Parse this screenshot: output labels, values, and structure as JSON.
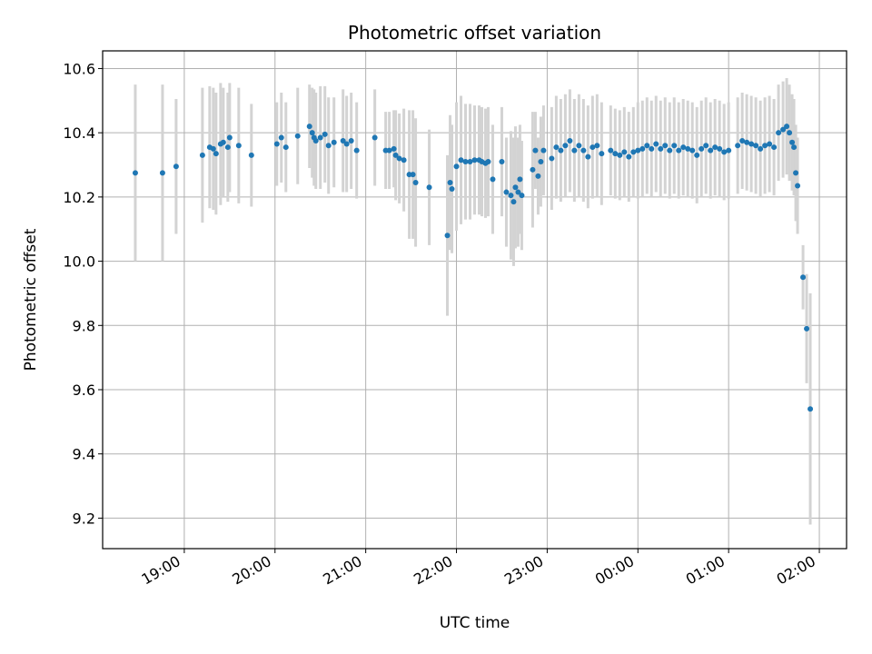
{
  "chart_data": {
    "type": "scatter",
    "title": "Photometric offset variation",
    "xlabel": "UTC time",
    "ylabel": "Photometric offset",
    "x_unit": "hours UTC",
    "xlim": [
      18.1,
      26.3
    ],
    "ylim": [
      9.105,
      10.655
    ],
    "grid": true,
    "x_ticks": [
      {
        "value": 19,
        "label": "19:00"
      },
      {
        "value": 20,
        "label": "20:00"
      },
      {
        "value": 21,
        "label": "21:00"
      },
      {
        "value": 22,
        "label": "22:00"
      },
      {
        "value": 23,
        "label": "23:00"
      },
      {
        "value": 24,
        "label": "00:00"
      },
      {
        "value": 25,
        "label": "01:00"
      },
      {
        "value": 26,
        "label": "02:00"
      }
    ],
    "y_ticks": [
      {
        "value": 9.2,
        "label": "9.2"
      },
      {
        "value": 9.4,
        "label": "9.4"
      },
      {
        "value": 9.6,
        "label": "9.6"
      },
      {
        "value": 9.8,
        "label": "9.8"
      },
      {
        "value": 10.0,
        "label": "10.0"
      },
      {
        "value": 10.2,
        "label": "10.2"
      },
      {
        "value": 10.4,
        "label": "10.4"
      },
      {
        "value": 10.6,
        "label": "10.6"
      }
    ],
    "colors": {
      "point": "#1f77b4",
      "errorbar": "#d3d3d3",
      "grid": "#b0b0b0"
    },
    "series": [
      {
        "points": [
          [
            18.46,
            10.275,
            0.275
          ],
          [
            18.76,
            10.275,
            0.275
          ],
          [
            18.91,
            10.295,
            0.21
          ],
          [
            19.2,
            10.33,
            0.21
          ],
          [
            19.28,
            10.355,
            0.19
          ],
          [
            19.32,
            10.35,
            0.19
          ],
          [
            19.35,
            10.335,
            0.19
          ],
          [
            19.4,
            10.365,
            0.19
          ],
          [
            19.43,
            10.37,
            0.17
          ],
          [
            19.48,
            10.355,
            0.17
          ],
          [
            19.5,
            10.385,
            0.17
          ],
          [
            19.6,
            10.36,
            0.18
          ],
          [
            19.74,
            10.33,
            0.16
          ],
          [
            20.02,
            10.365,
            0.13
          ],
          [
            20.07,
            10.385,
            0.14
          ],
          [
            20.12,
            10.355,
            0.14
          ],
          [
            20.25,
            10.39,
            0.15
          ],
          [
            20.38,
            10.42,
            0.13
          ],
          [
            20.41,
            10.4,
            0.14
          ],
          [
            20.43,
            10.385,
            0.15
          ],
          [
            20.45,
            10.375,
            0.15
          ],
          [
            20.5,
            10.385,
            0.16
          ],
          [
            20.55,
            10.395,
            0.15
          ],
          [
            20.59,
            10.36,
            0.15
          ],
          [
            20.65,
            10.37,
            0.14
          ],
          [
            20.75,
            10.375,
            0.16
          ],
          [
            20.79,
            10.365,
            0.15
          ],
          [
            20.84,
            10.375,
            0.15
          ],
          [
            20.9,
            10.345,
            0.15
          ],
          [
            21.1,
            10.385,
            0.15
          ],
          [
            21.22,
            10.345,
            0.12
          ],
          [
            21.26,
            10.345,
            0.12
          ],
          [
            21.31,
            10.35,
            0.12
          ],
          [
            21.33,
            10.33,
            0.14
          ],
          [
            21.37,
            10.32,
            0.14
          ],
          [
            21.42,
            10.315,
            0.16
          ],
          [
            21.48,
            10.27,
            0.2
          ],
          [
            21.52,
            10.27,
            0.2
          ],
          [
            21.55,
            10.245,
            0.2
          ],
          [
            21.7,
            10.23,
            0.18
          ],
          [
            21.9,
            10.08,
            0.25
          ],
          [
            21.93,
            10.245,
            0.21
          ],
          [
            21.95,
            10.225,
            0.2
          ],
          [
            22.0,
            10.295,
            0.2
          ],
          [
            22.05,
            10.315,
            0.2
          ],
          [
            22.1,
            10.31,
            0.18
          ],
          [
            22.15,
            10.31,
            0.18
          ],
          [
            22.2,
            10.315,
            0.17
          ],
          [
            22.25,
            10.315,
            0.17
          ],
          [
            22.28,
            10.31,
            0.17
          ],
          [
            22.32,
            10.305,
            0.17
          ],
          [
            22.35,
            10.31,
            0.17
          ],
          [
            22.4,
            10.255,
            0.17
          ],
          [
            22.5,
            10.31,
            0.17
          ],
          [
            22.55,
            10.215,
            0.17
          ],
          [
            22.6,
            10.205,
            0.2
          ],
          [
            22.63,
            10.185,
            0.2
          ],
          [
            22.65,
            10.23,
            0.19
          ],
          [
            22.68,
            10.215,
            0.17
          ],
          [
            22.7,
            10.255,
            0.17
          ],
          [
            22.72,
            10.205,
            0.17
          ],
          [
            22.84,
            10.285,
            0.18
          ],
          [
            22.87,
            10.345,
            0.12
          ],
          [
            22.9,
            10.265,
            0.12
          ],
          [
            22.93,
            10.31,
            0.14
          ],
          [
            22.96,
            10.345,
            0.14
          ],
          [
            23.05,
            10.32,
            0.16
          ],
          [
            23.1,
            10.355,
            0.16
          ],
          [
            23.15,
            10.345,
            0.16
          ],
          [
            23.2,
            10.36,
            0.16
          ],
          [
            23.25,
            10.375,
            0.16
          ],
          [
            23.3,
            10.345,
            0.16
          ],
          [
            23.35,
            10.36,
            0.16
          ],
          [
            23.4,
            10.345,
            0.16
          ],
          [
            23.45,
            10.325,
            0.16
          ],
          [
            23.5,
            10.355,
            0.16
          ],
          [
            23.55,
            10.36,
            0.16
          ],
          [
            23.6,
            10.335,
            0.16
          ],
          [
            23.7,
            10.345,
            0.14
          ],
          [
            23.75,
            10.335,
            0.14
          ],
          [
            23.8,
            10.33,
            0.14
          ],
          [
            23.85,
            10.34,
            0.14
          ],
          [
            23.9,
            10.325,
            0.14
          ],
          [
            23.95,
            10.34,
            0.14
          ],
          [
            24.0,
            10.345,
            0.15
          ],
          [
            24.05,
            10.35,
            0.15
          ],
          [
            24.1,
            10.36,
            0.15
          ],
          [
            24.15,
            10.35,
            0.15
          ],
          [
            24.2,
            10.365,
            0.15
          ],
          [
            24.25,
            10.35,
            0.15
          ],
          [
            24.3,
            10.36,
            0.15
          ],
          [
            24.35,
            10.345,
            0.15
          ],
          [
            24.4,
            10.36,
            0.15
          ],
          [
            24.45,
            10.345,
            0.15
          ],
          [
            24.5,
            10.355,
            0.15
          ],
          [
            24.55,
            10.35,
            0.15
          ],
          [
            24.6,
            10.345,
            0.15
          ],
          [
            24.65,
            10.33,
            0.15
          ],
          [
            24.7,
            10.35,
            0.15
          ],
          [
            24.75,
            10.36,
            0.15
          ],
          [
            24.8,
            10.345,
            0.15
          ],
          [
            24.85,
            10.355,
            0.15
          ],
          [
            24.9,
            10.35,
            0.15
          ],
          [
            24.95,
            10.34,
            0.15
          ],
          [
            25.0,
            10.345,
            0.15
          ],
          [
            25.1,
            10.36,
            0.15
          ],
          [
            25.15,
            10.375,
            0.15
          ],
          [
            25.2,
            10.37,
            0.15
          ],
          [
            25.25,
            10.365,
            0.15
          ],
          [
            25.3,
            10.36,
            0.15
          ],
          [
            25.35,
            10.35,
            0.15
          ],
          [
            25.4,
            10.36,
            0.15
          ],
          [
            25.45,
            10.365,
            0.15
          ],
          [
            25.5,
            10.355,
            0.15
          ],
          [
            25.55,
            10.4,
            0.15
          ],
          [
            25.6,
            10.41,
            0.15
          ],
          [
            25.64,
            10.42,
            0.15
          ],
          [
            25.67,
            10.4,
            0.15
          ],
          [
            25.7,
            10.37,
            0.15
          ],
          [
            25.72,
            10.355,
            0.15
          ],
          [
            25.74,
            10.275,
            0.15
          ],
          [
            25.76,
            10.235,
            0.15
          ],
          [
            25.82,
            9.95,
            0.1
          ],
          [
            25.86,
            9.79,
            0.17
          ],
          [
            25.9,
            9.54,
            0.36
          ]
        ]
      }
    ]
  }
}
